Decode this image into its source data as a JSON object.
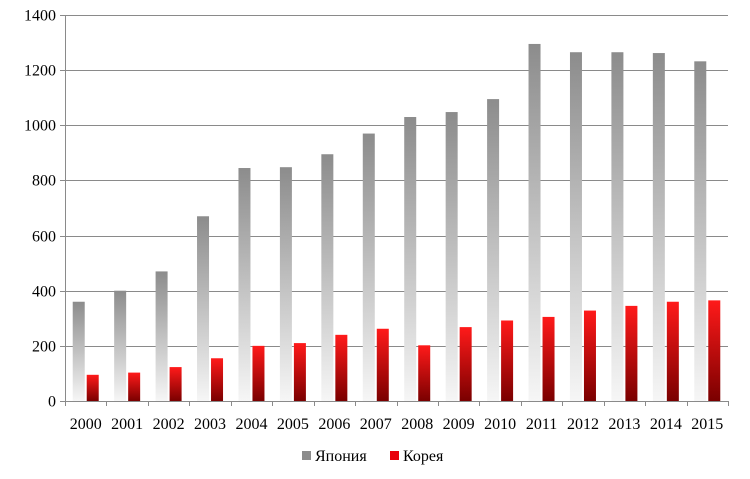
{
  "chart_data": {
    "type": "bar",
    "categories": [
      "2000",
      "2001",
      "2002",
      "2003",
      "2004",
      "2005",
      "2006",
      "2007",
      "2008",
      "2009",
      "2010",
      "2011",
      "2012",
      "2013",
      "2014",
      "2015"
    ],
    "series": [
      {
        "name": "Япония",
        "values": [
          360,
          400,
          470,
          670,
          845,
          848,
          895,
          970,
          1030,
          1048,
          1095,
          1295,
          1265,
          1265,
          1262,
          1232
        ],
        "color": "#9a9a9a"
      },
      {
        "name": "Корея",
        "values": [
          95,
          103,
          123,
          155,
          200,
          210,
          240,
          262,
          202,
          268,
          292,
          305,
          328,
          345,
          360,
          365
        ],
        "color": "#e8000b"
      }
    ],
    "ylim": [
      0,
      1400
    ],
    "yticks": [
      0,
      200,
      400,
      600,
      800,
      1000,
      1200,
      1400
    ],
    "grid": true,
    "legend": "bottom"
  }
}
